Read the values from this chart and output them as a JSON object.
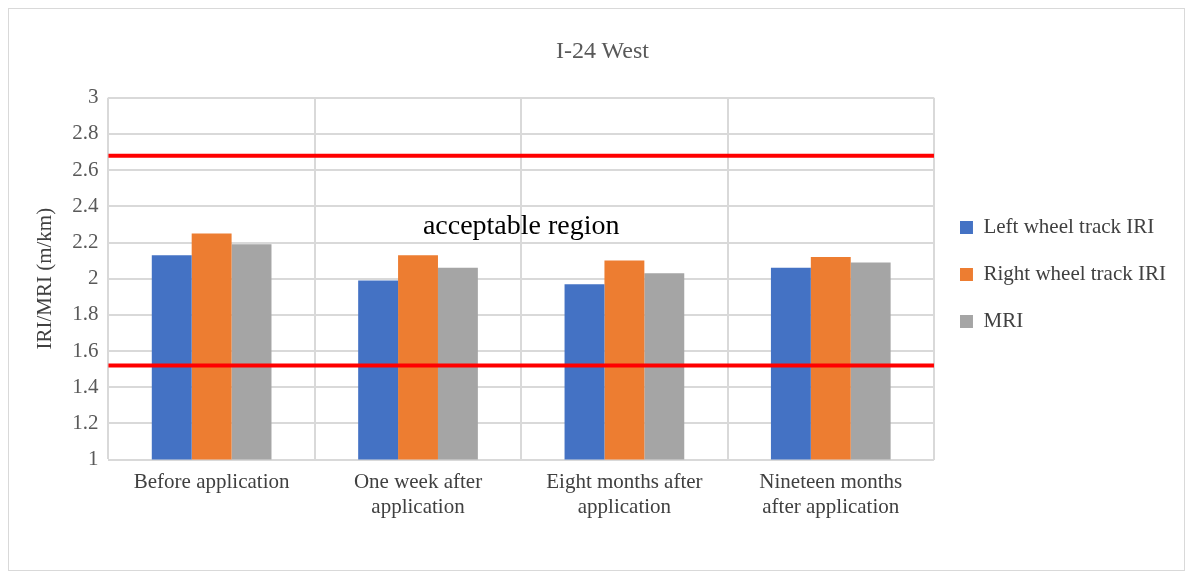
{
  "chart_data": {
    "type": "bar",
    "title": "I-24 West",
    "ylabel": "IRI/MRI (m/km)",
    "categories": [
      "Before application",
      "One week after application",
      "Eight months after application",
      "Nineteen months after application"
    ],
    "series": [
      {
        "name": "Left wheel track IRI",
        "color": "#4472c4",
        "values": [
          2.13,
          1.99,
          1.97,
          2.06
        ]
      },
      {
        "name": "Right wheel track IRI",
        "color": "#ed7d31",
        "values": [
          2.25,
          2.13,
          2.1,
          2.12
        ]
      },
      {
        "name": "MRI",
        "color": "#a5a5a5",
        "values": [
          2.19,
          2.06,
          2.03,
          2.09
        ]
      }
    ],
    "ylim": [
      1,
      3
    ],
    "yticks": [
      1,
      1.2,
      1.4,
      1.6,
      1.8,
      2,
      2.2,
      2.4,
      2.6,
      2.8,
      3
    ],
    "ref_lines": [
      {
        "axis": "y",
        "value": 2.68,
        "color": "#ff0000"
      },
      {
        "axis": "y",
        "value": 1.52,
        "color": "#ff0000"
      }
    ],
    "annotations": [
      "acceptable region"
    ],
    "grid": true,
    "legend": "right"
  }
}
